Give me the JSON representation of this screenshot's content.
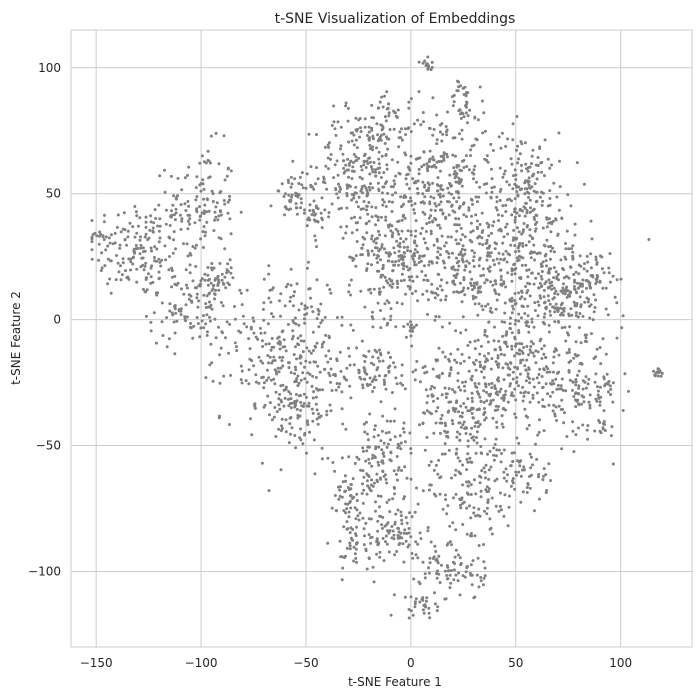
{
  "chart_data": {
    "type": "scatter",
    "title": "t-SNE Visualization of Embeddings",
    "xlabel": "t-SNE Feature 1",
    "ylabel": "t-SNE Feature 2",
    "xlim": [
      -162,
      134
    ],
    "ylim": [
      -130,
      115
    ],
    "xticks": [
      -150,
      -100,
      -50,
      0,
      50,
      100
    ],
    "yticks": [
      -100,
      -50,
      0,
      50,
      100
    ],
    "xtick_labels": [
      "−150",
      "−100",
      "−50",
      "0",
      "50",
      "100"
    ],
    "ytick_labels": [
      "−100",
      "−50",
      "0",
      "50",
      "100"
    ],
    "grid": true,
    "marker_color": "#808080",
    "clusters": [
      {
        "cx": -130,
        "cy": 28,
        "sx": 12,
        "sy": 10,
        "n": 160
      },
      {
        "cx": -100,
        "cy": 45,
        "sx": 8,
        "sy": 12,
        "n": 130
      },
      {
        "cx": -105,
        "cy": 5,
        "sx": 10,
        "sy": 8,
        "n": 110
      },
      {
        "cx": -92,
        "cy": 15,
        "sx": 4,
        "sy": 4,
        "n": 40
      },
      {
        "cx": -55,
        "cy": 48,
        "sx": 5,
        "sy": 4,
        "n": 50
      },
      {
        "cx": -45,
        "cy": 40,
        "sx": 3,
        "sy": 4,
        "n": 25
      },
      {
        "cx": -60,
        "cy": -10,
        "sx": 15,
        "sy": 15,
        "n": 250
      },
      {
        "cx": -55,
        "cy": -35,
        "sx": 10,
        "sy": 10,
        "n": 120
      },
      {
        "cx": -20,
        "cy": -20,
        "sx": 12,
        "sy": 5,
        "n": 90
      },
      {
        "cx": -25,
        "cy": 60,
        "sx": 10,
        "sy": 12,
        "n": 220
      },
      {
        "cx": -10,
        "cy": 25,
        "sx": 10,
        "sy": 12,
        "n": 220
      },
      {
        "cx": 15,
        "cy": 55,
        "sx": 12,
        "sy": 15,
        "n": 300
      },
      {
        "cx": 30,
        "cy": 20,
        "sx": 14,
        "sy": 12,
        "n": 260
      },
      {
        "cx": 55,
        "cy": 45,
        "sx": 10,
        "sy": 15,
        "n": 260
      },
      {
        "cx": 70,
        "cy": 10,
        "sx": 12,
        "sy": 10,
        "n": 200
      },
      {
        "cx": 85,
        "cy": 15,
        "sx": 5,
        "sy": 6,
        "n": 60
      },
      {
        "cx": 50,
        "cy": -20,
        "sx": 18,
        "sy": 12,
        "n": 300
      },
      {
        "cx": 80,
        "cy": -30,
        "sx": 10,
        "sy": 8,
        "n": 110
      },
      {
        "cx": 20,
        "cy": -35,
        "sx": 10,
        "sy": 10,
        "n": 150
      },
      {
        "cx": 30,
        "cy": -65,
        "sx": 12,
        "sy": 12,
        "n": 180
      },
      {
        "cx": 55,
        "cy": -62,
        "sx": 5,
        "sy": 5,
        "n": 45
      },
      {
        "cx": -15,
        "cy": -60,
        "sx": 7,
        "sy": 14,
        "n": 150
      },
      {
        "cx": -30,
        "cy": -70,
        "sx": 4,
        "sy": 8,
        "n": 50
      },
      {
        "cx": -5,
        "cy": -85,
        "sx": 5,
        "sy": 5,
        "n": 50
      },
      {
        "cx": -25,
        "cy": -90,
        "sx": 6,
        "sy": 5,
        "n": 45
      },
      {
        "cx": 20,
        "cy": -100,
        "sx": 8,
        "sy": 6,
        "n": 80
      },
      {
        "cx": 5,
        "cy": -113,
        "sx": 4,
        "sy": 3,
        "n": 30
      },
      {
        "cx": 25,
        "cy": 85,
        "sx": 3,
        "sy": 5,
        "n": 30
      },
      {
        "cx": -10,
        "cy": 78,
        "sx": 5,
        "sy": 6,
        "n": 50
      },
      {
        "cx": 8,
        "cy": 101,
        "sx": 2,
        "sy": 1.5,
        "n": 14
      },
      {
        "cx": 118,
        "cy": -21,
        "sx": 1.5,
        "sy": 0.8,
        "n": 14
      },
      {
        "cx": 95,
        "cy": -25,
        "sx": 1,
        "sy": 1,
        "n": 6
      },
      {
        "cx": 92,
        "cy": -42,
        "sx": 1,
        "sy": 1.5,
        "n": 8
      },
      {
        "cx": 0,
        "cy": -3,
        "sx": 1.5,
        "sy": 1.5,
        "n": 10
      },
      {
        "cx": -150,
        "cy": 33,
        "sx": 3,
        "sy": 1,
        "n": 10
      }
    ]
  }
}
